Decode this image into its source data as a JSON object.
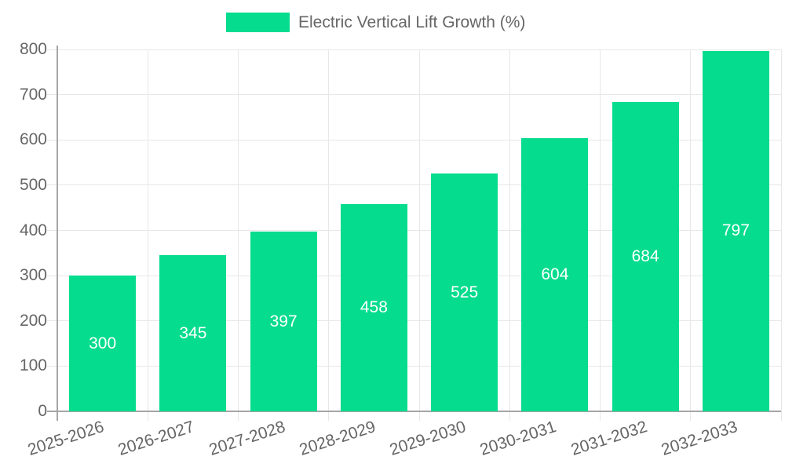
{
  "legend": {
    "label": "Electric Vertical Lift Growth (%)"
  },
  "chart_data": {
    "type": "bar",
    "title": "Electric Vertical Lift Growth (%)",
    "categories": [
      "2025-2026",
      "2026-2027",
      "2027-2028",
      "2028-2029",
      "2029-2030",
      "2030-2031",
      "2031-2032",
      "2032-2033"
    ],
    "values": [
      300,
      345,
      397,
      458,
      525,
      604,
      684,
      797
    ],
    "value_labels": [
      "300",
      "345",
      "397",
      "458",
      "525",
      "604",
      "684",
      "797"
    ],
    "xlabel": "",
    "ylabel": "",
    "ylim": [
      0,
      800
    ],
    "yticks": [
      0,
      100,
      200,
      300,
      400,
      500,
      600,
      700,
      800
    ],
    "grid": true,
    "legend_position": "top",
    "x_label_rotation_deg": -18,
    "colors": {
      "bar": "#06DC8E",
      "axis_text": "#666666",
      "grid_line": "#e7e7e7",
      "axis_line": "#a5a5a5",
      "value_text": "#ffffff",
      "background": "#ffffff"
    }
  }
}
